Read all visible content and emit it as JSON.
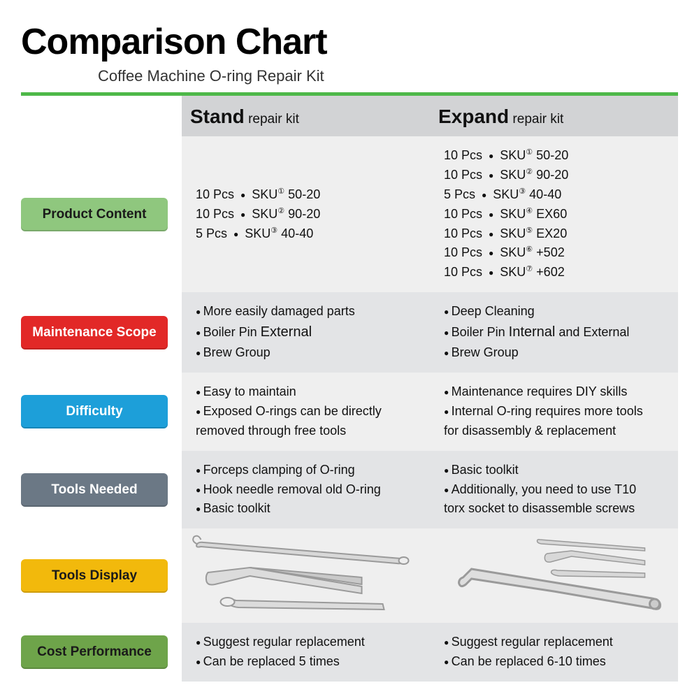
{
  "title": "Comparison Chart",
  "subtitle": "Coffee Machine O-ring Repair Kit",
  "columns": {
    "stand": {
      "big": "Stand",
      "small": "repair kit"
    },
    "expand": {
      "big": "Expand",
      "small": "repair kit"
    }
  },
  "labels": {
    "product": {
      "text": "Product Content",
      "bg": "#8fc77e",
      "fg": "#1a1a1a"
    },
    "maint": {
      "text": "Maintenance Scope",
      "bg": "#e22827",
      "fg": "#ffffff"
    },
    "diff": {
      "text": "Difficulty",
      "bg": "#1d9fd9",
      "fg": "#ffffff"
    },
    "tools": {
      "text": "Tools Needed",
      "bg": "#6b7885",
      "fg": "#ffffff"
    },
    "display": {
      "text": "Tools Display",
      "bg": "#f2b90c",
      "fg": "#1a1a1a"
    },
    "cost": {
      "text": "Cost Performance",
      "bg": "#6ea44a",
      "fg": "#1a1a1a"
    }
  },
  "product": {
    "stand": [
      {
        "qty": "10 Pcs",
        "sku": "SKU",
        "sup": "①",
        "code": "50-20"
      },
      {
        "qty": "10 Pcs",
        "sku": "SKU",
        "sup": "②",
        "code": "90-20"
      },
      {
        "qty": " 5 Pcs",
        "sku": "SKU",
        "sup": "③",
        "code": "40-40"
      }
    ],
    "expand": [
      {
        "qty": "10 Pcs",
        "sku": "SKU",
        "sup": "①",
        "code": "50-20"
      },
      {
        "qty": "10 Pcs",
        "sku": "SKU",
        "sup": "②",
        "code": "90-20"
      },
      {
        "qty": "5 Pcs",
        "sku": "SKU",
        "sup": "③",
        "code": "40-40"
      },
      {
        "qty": "10 Pcs",
        "sku": "SKU",
        "sup": "④",
        "code": "EX60"
      },
      {
        "qty": "10 Pcs",
        "sku": "SKU",
        "sup": "⑤",
        "code": "EX20"
      },
      {
        "qty": "10 Pcs",
        "sku": "SKU",
        "sup": "⑥",
        "code": "+502"
      },
      {
        "qty": "10 Pcs",
        "sku": "SKU",
        "sup": "⑦",
        "code": "+602"
      }
    ]
  },
  "maint": {
    "stand": [
      "More easily damaged parts",
      "Boiler Pin <span class=\"emph\">External</span>",
      "Brew Group"
    ],
    "expand": [
      "Deep Cleaning",
      "Boiler Pin <span class=\"emph\">Internal</span> and External",
      "Brew Group"
    ]
  },
  "diff": {
    "stand": [
      "Easy to maintain",
      "Exposed O-rings can be directly"
    ],
    "stand_tail": "removed through free tools",
    "expand": [
      "Maintenance requires DIY skills",
      "Internal O-ring requires more tools"
    ],
    "expand_tail": "for disassembly & replacement"
  },
  "tools": {
    "stand": [
      "Forceps clamping of O-ring",
      "Hook needle removal old O-ring",
      "Basic toolkit"
    ],
    "expand": [
      "Basic toolkit",
      "Additionally, you need to use T10"
    ],
    "expand_tail": "torx socket to disassemble screws"
  },
  "cost": {
    "stand": [
      "Suggest regular replacement",
      "Can be replaced 5 times"
    ],
    "expand": [
      "Suggest regular replacement",
      "Can be replaced 6-10 times"
    ]
  },
  "colors": {
    "greenbar": "#4db848",
    "header_bg": "#d2d3d5",
    "row_a": "#efefef",
    "row_b": "#e3e4e6",
    "tool_stroke": "#b8b8b8",
    "tool_fill": "#d9d9d9"
  }
}
